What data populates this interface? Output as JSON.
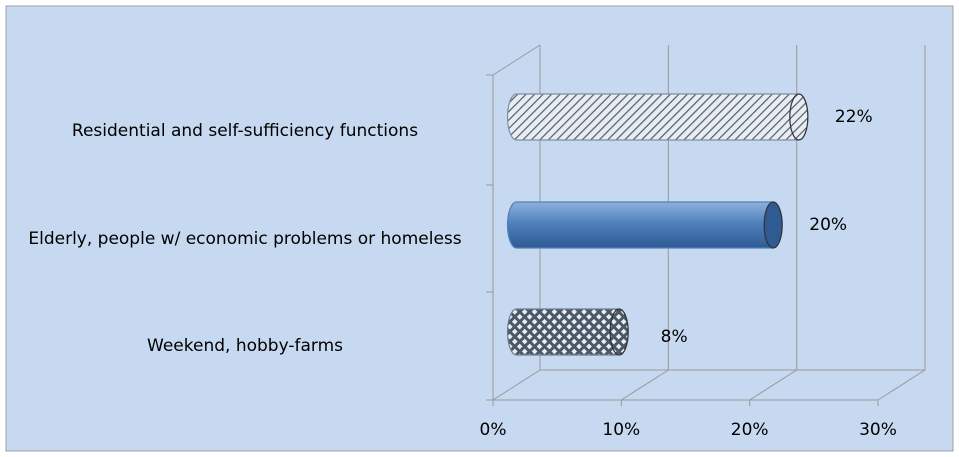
{
  "chart_data": {
    "type": "bar",
    "orientation": "horizontal",
    "categories": [
      "Residential and self-sufficiency functions",
      "Elderly, people w/ economic problems or homeless",
      "Weekend, hobby-farms"
    ],
    "values": [
      22,
      20,
      8
    ],
    "value_labels": [
      "22%",
      "20%",
      "8%"
    ],
    "colors": [
      "#7f8fa6",
      "#4f81bd",
      "#6f7f96"
    ],
    "xlim": [
      0,
      30
    ],
    "xticks": [
      {
        "value": 0,
        "label": "0%"
      },
      {
        "value": 10,
        "label": "10%"
      },
      {
        "value": 20,
        "label": "20%"
      },
      {
        "value": 30,
        "label": "30%"
      }
    ],
    "grid": true
  }
}
